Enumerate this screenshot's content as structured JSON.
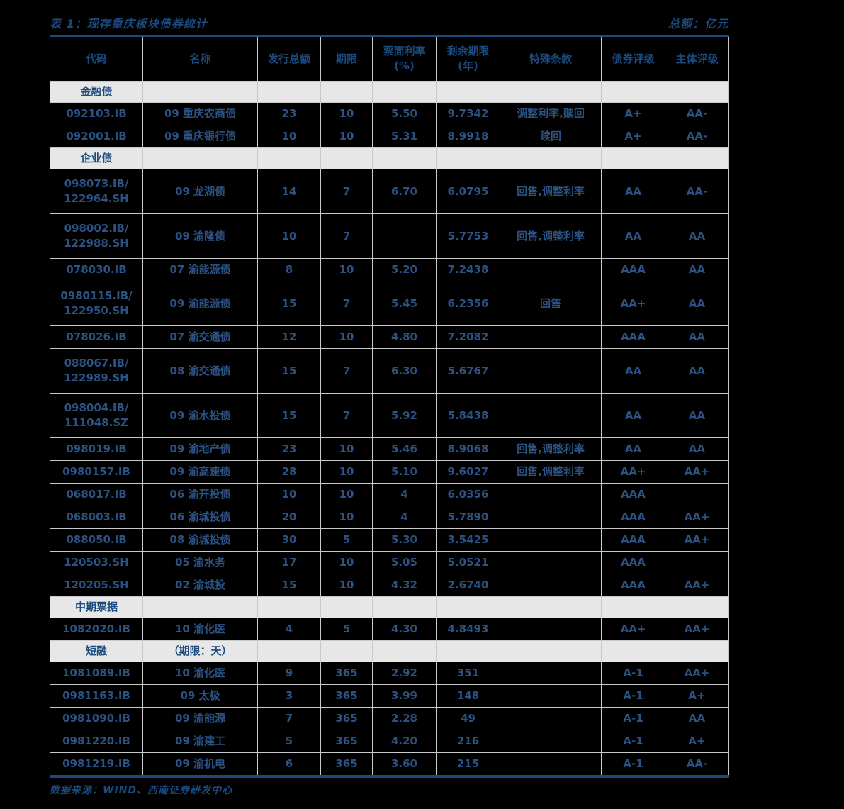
{
  "title": {
    "left": "表 1：现存重庆板块债券统计",
    "right": "总额：亿元"
  },
  "table": {
    "columns": [
      "代码",
      "名称",
      "发行总额",
      "期限",
      "票面利率\n(%)",
      "剩余期限\n(年)",
      "特殊条款",
      "债券评级",
      "主体评级"
    ],
    "sections": [
      {
        "label": "金融债",
        "note": "",
        "rows": [
          [
            "092103.IB",
            "09 重庆农商债",
            "23",
            "10",
            "5.50",
            "9.7342",
            "调整利率,赎回",
            "A+",
            "AA-"
          ],
          [
            "092001.IB",
            "09 重庆银行债",
            "10",
            "10",
            "5.31",
            "8.9918",
            "赎回",
            "A+",
            "AA-"
          ]
        ]
      },
      {
        "label": "企业债",
        "note": "",
        "rows": [
          [
            "098073.IB/\n122964.SH",
            "09 龙湖债",
            "14",
            "7",
            "6.70",
            "6.0795",
            "回售,调整利率",
            "AA",
            "AA-"
          ],
          [
            "098002.IB/\n122988.SH",
            "09 渝隆债",
            "10",
            "7",
            "",
            "5.7753",
            "回售,调整利率",
            "AA",
            "AA"
          ],
          [
            "078030.IB",
            "07 渝能源债",
            "8",
            "10",
            "5.20",
            "7.2438",
            "",
            "AAA",
            "AA"
          ],
          [
            "0980115.IB/\n122950.SH",
            "09 渝能源债",
            "15",
            "7",
            "5.45",
            "6.2356",
            "回售",
            "AA+",
            "AA"
          ],
          [
            "078026.IB",
            "07 渝交通债",
            "12",
            "10",
            "4.80",
            "7.2082",
            "",
            "AAA",
            "AA"
          ],
          [
            "088067.IB/\n122989.SH",
            "08 渝交通债",
            "15",
            "7",
            "6.30",
            "5.6767",
            "",
            "AA",
            "AA"
          ],
          [
            "098004.IB/\n111048.SZ",
            "09 渝水投债",
            "15",
            "7",
            "5.92",
            "5.8438",
            "",
            "AA",
            "AA"
          ],
          [
            "098019.IB",
            "09 渝地产债",
            "23",
            "10",
            "5.46",
            "8.9068",
            "回售,调整利率",
            "AA",
            "AA"
          ],
          [
            "0980157.IB",
            "09 渝高速债",
            "28",
            "10",
            "5.10",
            "9.6027",
            "回售,调整利率",
            "AA+",
            "AA+"
          ],
          [
            "068017.IB",
            "06 渝开投债",
            "10",
            "10",
            "4",
            "6.0356",
            "",
            "AAA",
            ""
          ],
          [
            "068003.IB",
            "06 渝城投债",
            "20",
            "10",
            "4",
            "5.7890",
            "",
            "AAA",
            "AA+"
          ],
          [
            "088050.IB",
            "08 渝城投债",
            "30",
            "5",
            "5.30",
            "3.5425",
            "",
            "AAA",
            "AA+"
          ],
          [
            "120503.SH",
            "05 渝水务",
            "17",
            "10",
            "5.05",
            "5.0521",
            "",
            "AAA",
            ""
          ],
          [
            "120205.SH",
            "02 渝城投",
            "15",
            "10",
            "4.32",
            "2.6740",
            "",
            "AAA",
            "AA+"
          ]
        ]
      },
      {
        "label": "中期票据",
        "note": "",
        "rows": [
          [
            "1082020.IB",
            "10 渝化医",
            "4",
            "5",
            "4.30",
            "4.8493",
            "",
            "AA+",
            "AA+"
          ]
        ]
      },
      {
        "label": "短融",
        "note": "（期限：天）",
        "rows": [
          [
            "1081089.IB",
            "10 渝化医",
            "9",
            "365",
            "2.92",
            "351",
            "",
            "A-1",
            "AA+"
          ],
          [
            "0981163.IB",
            "09 太极",
            "3",
            "365",
            "3.99",
            "148",
            "",
            "A-1",
            "A+"
          ],
          [
            "0981090.IB",
            "09 渝能源",
            "7",
            "365",
            "2.28",
            "49",
            "",
            "A-1",
            "AA"
          ],
          [
            "0981220.IB",
            "09 渝建工",
            "5",
            "365",
            "4.20",
            "216",
            "",
            "A-1",
            "A+"
          ],
          [
            "0981219.IB",
            "09 渝机电",
            "6",
            "365",
            "3.60",
            "215",
            "",
            "A-1",
            "AA-"
          ]
        ]
      }
    ]
  },
  "footer": {
    "source": "数据来源：WIND、西南证券研发中心"
  },
  "colors": {
    "background": "#000000",
    "accent_blue": "#1b4a7e",
    "cell_text_blue": "#2b5283",
    "section_band_gray": "#e7e7e7",
    "grid_line_gray": "#c9c9c9"
  }
}
